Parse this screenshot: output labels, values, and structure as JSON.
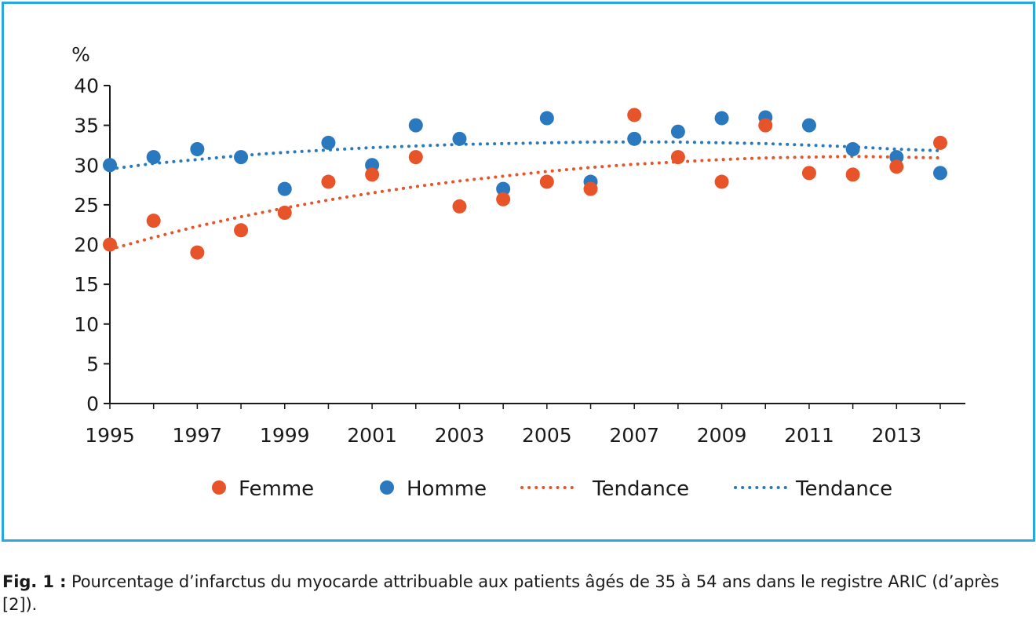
{
  "colors": {
    "frame": "#29a8df",
    "femme": "#e8542a",
    "homme": "#2a79be",
    "text": "#1a1a1a"
  },
  "caption": {
    "label": "Fig. 1 :",
    "text": "Pourcentage d’infarctus du myocarde attribuable aux patients âgés de 35 à 54 ans dans le registre ARIC (d’après [2])."
  },
  "chart_data": {
    "type": "scatter",
    "ylabel": "%",
    "xlabel": "",
    "ylim": [
      0,
      40
    ],
    "xlim": [
      1995,
      2014
    ],
    "yticks": [
      0,
      5,
      10,
      15,
      20,
      25,
      30,
      35,
      40
    ],
    "xticks": [
      1995,
      1997,
      1999,
      2001,
      2003,
      2005,
      2007,
      2009,
      2011,
      2013
    ],
    "grid": false,
    "legend_placement": "bottom",
    "x": [
      1995,
      1996,
      1997,
      1998,
      1999,
      2000,
      2001,
      2002,
      2003,
      2004,
      2005,
      2006,
      2007,
      2008,
      2009,
      2010,
      2011,
      2012,
      2013,
      2014
    ],
    "series": [
      {
        "name": "Femme",
        "color": "#e8542a",
        "values": [
          20,
          23,
          19,
          21.8,
          24,
          27.9,
          28.8,
          31,
          24.8,
          25.7,
          27.9,
          27,
          36.3,
          31,
          27.9,
          35,
          29,
          28.8,
          29.8,
          32.8
        ]
      },
      {
        "name": "Homme",
        "color": "#2a79be",
        "values": [
          30,
          31,
          32,
          31,
          27,
          32.8,
          30,
          35,
          33.3,
          27,
          35.9,
          27.9,
          33.3,
          34.2,
          35.9,
          36,
          35,
          32,
          31,
          29
        ]
      }
    ],
    "trendlines": [
      {
        "name": "Tendance",
        "color": "#e8542a",
        "style": "dotted",
        "values": [
          19.4,
          20.9,
          22.3,
          23.5,
          24.6,
          25.6,
          26.5,
          27.3,
          28.0,
          28.6,
          29.2,
          29.7,
          30.1,
          30.4,
          30.7,
          30.9,
          31.0,
          31.1,
          31.0,
          30.9
        ]
      },
      {
        "name": "Tendance",
        "color": "#2a79be",
        "style": "dotted",
        "values": [
          29.5,
          30.2,
          30.7,
          31.2,
          31.6,
          31.9,
          32.2,
          32.4,
          32.6,
          32.7,
          32.8,
          32.9,
          32.9,
          32.9,
          32.8,
          32.7,
          32.5,
          32.3,
          32.0,
          31.8
        ]
      }
    ],
    "legend": [
      {
        "label": "Femme",
        "kind": "marker",
        "color": "#e8542a"
      },
      {
        "label": "Homme",
        "kind": "marker",
        "color": "#2a79be"
      },
      {
        "label": "Tendance",
        "kind": "dotted-line",
        "color": "#e8542a"
      },
      {
        "label": "Tendance",
        "kind": "dotted-line",
        "color": "#2a79be"
      }
    ]
  }
}
